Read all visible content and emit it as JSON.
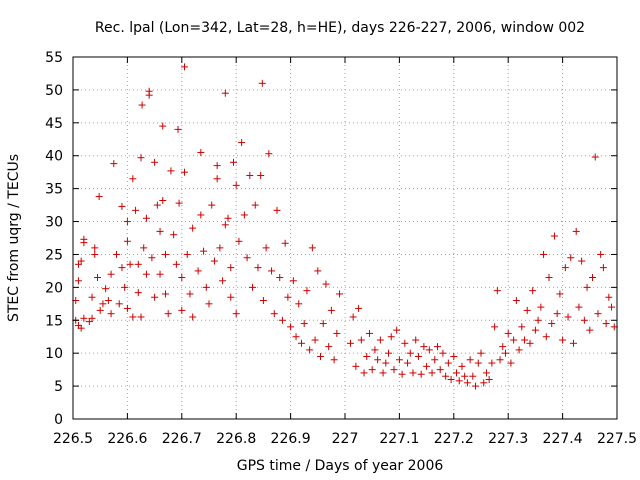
{
  "chart_data": {
    "type": "scatter",
    "title": "Rec. lpal (Lon=342, Lat=28, h=HE), days 226-227, 2006, window 002",
    "xlabel": "GPS time / Days of year 2006",
    "ylabel": "STEC from uqrg / TECUs",
    "xlim": [
      226.5,
      227.5
    ],
    "ylim": [
      0,
      55
    ],
    "grid": true,
    "marker": "plus",
    "color": "#cc0000",
    "x_ticks": [
      "226.5",
      "226.6",
      "226.7",
      "226.8",
      "226.9",
      "227",
      "227.1",
      "227.2",
      "227.3",
      "227.4",
      "227.5"
    ],
    "y_ticks": [
      "0",
      "5",
      "10",
      "15",
      "20",
      "25",
      "30",
      "35",
      "40",
      "45",
      "50",
      "55"
    ],
    "x_tick_values": [
      226.5,
      226.6,
      226.7,
      226.8,
      226.9,
      227.0,
      227.1,
      227.2,
      227.3,
      227.4,
      227.5
    ],
    "y_tick_values": [
      0,
      5,
      10,
      15,
      20,
      25,
      30,
      35,
      40,
      45,
      50,
      55
    ],
    "series": [
      {
        "points": [
          [
            226.505,
            15.0
          ],
          [
            226.51,
            14.2
          ],
          [
            226.515,
            13.8
          ],
          [
            226.52,
            15.3
          ],
          [
            226.505,
            18.0
          ],
          [
            226.51,
            21.0
          ],
          [
            226.515,
            24.0
          ],
          [
            226.52,
            26.8
          ],
          [
            226.52,
            27.3
          ],
          [
            226.51,
            23.5
          ],
          [
            226.53,
            14.8
          ],
          [
            226.535,
            15.3
          ],
          [
            226.535,
            18.5
          ],
          [
            226.54,
            25.0
          ],
          [
            226.54,
            26.0
          ],
          [
            226.545,
            21.5
          ],
          [
            226.548,
            33.8
          ],
          [
            226.55,
            16.5
          ],
          [
            226.555,
            17.5
          ],
          [
            226.56,
            19.8
          ],
          [
            226.565,
            18.0
          ],
          [
            226.57,
            16.0
          ],
          [
            226.57,
            22.0
          ],
          [
            226.575,
            38.8
          ],
          [
            226.58,
            25.0
          ],
          [
            226.585,
            17.5
          ],
          [
            226.59,
            32.3
          ],
          [
            226.59,
            23.0
          ],
          [
            226.595,
            20.0
          ],
          [
            226.6,
            27.0
          ],
          [
            226.6,
            30.0
          ],
          [
            226.6,
            16.8
          ],
          [
            226.605,
            23.5
          ],
          [
            226.61,
            15.5
          ],
          [
            226.61,
            36.5
          ],
          [
            226.615,
            31.7
          ],
          [
            226.62,
            23.5
          ],
          [
            226.62,
            19.2
          ],
          [
            226.625,
            15.5
          ],
          [
            226.625,
            39.7
          ],
          [
            226.627,
            47.7
          ],
          [
            226.63,
            26.0
          ],
          [
            226.635,
            22.0
          ],
          [
            226.635,
            30.5
          ],
          [
            226.64,
            49.2
          ],
          [
            226.64,
            49.8
          ],
          [
            226.645,
            24.5
          ],
          [
            226.65,
            39.0
          ],
          [
            226.65,
            18.5
          ],
          [
            226.655,
            32.5
          ],
          [
            226.66,
            28.5
          ],
          [
            226.66,
            22.0
          ],
          [
            226.665,
            44.5
          ],
          [
            226.665,
            33.2
          ],
          [
            226.67,
            25.0
          ],
          [
            226.67,
            19.0
          ],
          [
            226.675,
            16.0
          ],
          [
            226.68,
            37.7
          ],
          [
            226.685,
            28.0
          ],
          [
            226.69,
            23.5
          ],
          [
            226.693,
            44.0
          ],
          [
            226.695,
            32.8
          ],
          [
            226.7,
            21.5
          ],
          [
            226.7,
            16.5
          ],
          [
            226.705,
            53.5
          ],
          [
            226.705,
            37.5
          ],
          [
            226.71,
            25.0
          ],
          [
            226.715,
            19.0
          ],
          [
            226.72,
            29.0
          ],
          [
            226.72,
            15.5
          ],
          [
            226.73,
            22.5
          ],
          [
            226.735,
            40.5
          ],
          [
            226.735,
            31.0
          ],
          [
            226.74,
            25.5
          ],
          [
            226.745,
            20.0
          ],
          [
            226.75,
            17.5
          ],
          [
            226.755,
            32.5
          ],
          [
            226.76,
            24.0
          ],
          [
            226.765,
            38.5
          ],
          [
            226.765,
            36.5
          ],
          [
            226.77,
            26.0
          ],
          [
            226.775,
            21.0
          ],
          [
            226.78,
            49.5
          ],
          [
            226.78,
            29.5
          ],
          [
            226.785,
            30.5
          ],
          [
            226.79,
            18.5
          ],
          [
            226.79,
            23.0
          ],
          [
            226.795,
            39.0
          ],
          [
            226.8,
            35.5
          ],
          [
            226.8,
            16.0
          ],
          [
            226.805,
            27.0
          ],
          [
            226.81,
            42.0
          ],
          [
            226.815,
            31.0
          ],
          [
            226.82,
            24.5
          ],
          [
            226.825,
            37.0
          ],
          [
            226.83,
            20.0
          ],
          [
            226.835,
            32.5
          ],
          [
            226.84,
            23.0
          ],
          [
            226.845,
            37.0
          ],
          [
            226.848,
            51.0
          ],
          [
            226.85,
            18.0
          ],
          [
            226.855,
            26.0
          ],
          [
            226.86,
            40.3
          ],
          [
            226.865,
            22.5
          ],
          [
            226.87,
            16.0
          ],
          [
            226.875,
            31.7
          ],
          [
            226.88,
            21.5
          ],
          [
            226.885,
            15.0
          ],
          [
            226.89,
            26.7
          ],
          [
            226.895,
            18.5
          ],
          [
            226.9,
            14.0
          ],
          [
            226.905,
            21.0
          ],
          [
            226.91,
            12.5
          ],
          [
            226.915,
            17.5
          ],
          [
            226.92,
            11.5
          ],
          [
            226.925,
            14.5
          ],
          [
            226.93,
            19.5
          ],
          [
            226.935,
            10.5
          ],
          [
            226.94,
            26.0
          ],
          [
            226.945,
            12.0
          ],
          [
            226.95,
            22.5
          ],
          [
            226.955,
            9.5
          ],
          [
            226.96,
            14.5
          ],
          [
            226.965,
            20.5
          ],
          [
            226.97,
            11.0
          ],
          [
            226.975,
            16.5
          ],
          [
            226.98,
            9.0
          ],
          [
            226.985,
            13.0
          ],
          [
            226.99,
            19.0
          ],
          [
            227.01,
            11.5
          ],
          [
            227.015,
            15.5
          ],
          [
            227.02,
            8.0
          ],
          [
            227.025,
            16.8
          ],
          [
            227.03,
            12.0
          ],
          [
            227.035,
            7.0
          ],
          [
            227.04,
            9.5
          ],
          [
            227.045,
            13.0
          ],
          [
            227.05,
            7.5
          ],
          [
            227.055,
            10.5
          ],
          [
            227.06,
            9.0
          ],
          [
            227.065,
            12.0
          ],
          [
            227.07,
            7.0
          ],
          [
            227.075,
            8.5
          ],
          [
            227.08,
            10.0
          ],
          [
            227.085,
            12.5
          ],
          [
            227.09,
            7.5
          ],
          [
            227.095,
            13.5
          ],
          [
            227.1,
            9.0
          ],
          [
            227.105,
            6.8
          ],
          [
            227.11,
            11.5
          ],
          [
            227.115,
            8.5
          ],
          [
            227.12,
            10.0
          ],
          [
            227.125,
            7.0
          ],
          [
            227.13,
            12.0
          ],
          [
            227.135,
            9.5
          ],
          [
            227.14,
            6.8
          ],
          [
            227.145,
            11.0
          ],
          [
            227.15,
            8.0
          ],
          [
            227.155,
            10.5
          ],
          [
            227.16,
            7.0
          ],
          [
            227.165,
            9.0
          ],
          [
            227.17,
            11.0
          ],
          [
            227.175,
            7.5
          ],
          [
            227.18,
            10.0
          ],
          [
            227.185,
            6.5
          ],
          [
            227.19,
            8.5
          ],
          [
            227.195,
            6.0
          ],
          [
            227.2,
            9.5
          ],
          [
            227.205,
            7.0
          ],
          [
            227.21,
            5.8
          ],
          [
            227.215,
            8.0
          ],
          [
            227.22,
            6.5
          ],
          [
            227.225,
            5.5
          ],
          [
            227.23,
            9.0
          ],
          [
            227.235,
            6.5
          ],
          [
            227.24,
            5.0
          ],
          [
            227.245,
            8.5
          ],
          [
            227.25,
            10.0
          ],
          [
            227.255,
            5.5
          ],
          [
            227.26,
            7.0
          ],
          [
            227.265,
            6.0
          ],
          [
            227.27,
            8.5
          ],
          [
            227.275,
            14.0
          ],
          [
            227.28,
            19.5
          ],
          [
            227.285,
            9.0
          ],
          [
            227.29,
            11.0
          ],
          [
            227.295,
            10.0
          ],
          [
            227.3,
            13.0
          ],
          [
            227.305,
            8.5
          ],
          [
            227.31,
            12.0
          ],
          [
            227.315,
            18.0
          ],
          [
            227.32,
            10.5
          ],
          [
            227.325,
            14.0
          ],
          [
            227.33,
            12.0
          ],
          [
            227.335,
            16.5
          ],
          [
            227.34,
            11.5
          ],
          [
            227.345,
            19.5
          ],
          [
            227.35,
            13.5
          ],
          [
            227.355,
            15.0
          ],
          [
            227.36,
            17.0
          ],
          [
            227.365,
            25.0
          ],
          [
            227.37,
            12.5
          ],
          [
            227.375,
            21.5
          ],
          [
            227.38,
            14.5
          ],
          [
            227.385,
            27.8
          ],
          [
            227.39,
            16.0
          ],
          [
            227.395,
            19.0
          ],
          [
            227.4,
            12.0
          ],
          [
            227.405,
            23.0
          ],
          [
            227.41,
            15.5
          ],
          [
            227.415,
            24.5
          ],
          [
            227.42,
            11.5
          ],
          [
            227.425,
            28.5
          ],
          [
            227.43,
            17.0
          ],
          [
            227.435,
            24.0
          ],
          [
            227.44,
            15.0
          ],
          [
            227.445,
            20.0
          ],
          [
            227.45,
            13.5
          ],
          [
            227.455,
            21.5
          ],
          [
            227.46,
            39.8
          ],
          [
            227.465,
            16.0
          ],
          [
            227.47,
            25.0
          ],
          [
            227.475,
            23.0
          ],
          [
            227.48,
            14.5
          ],
          [
            227.485,
            18.5
          ],
          [
            227.49,
            17.0
          ],
          [
            227.495,
            14.0
          ]
        ]
      }
    ]
  }
}
